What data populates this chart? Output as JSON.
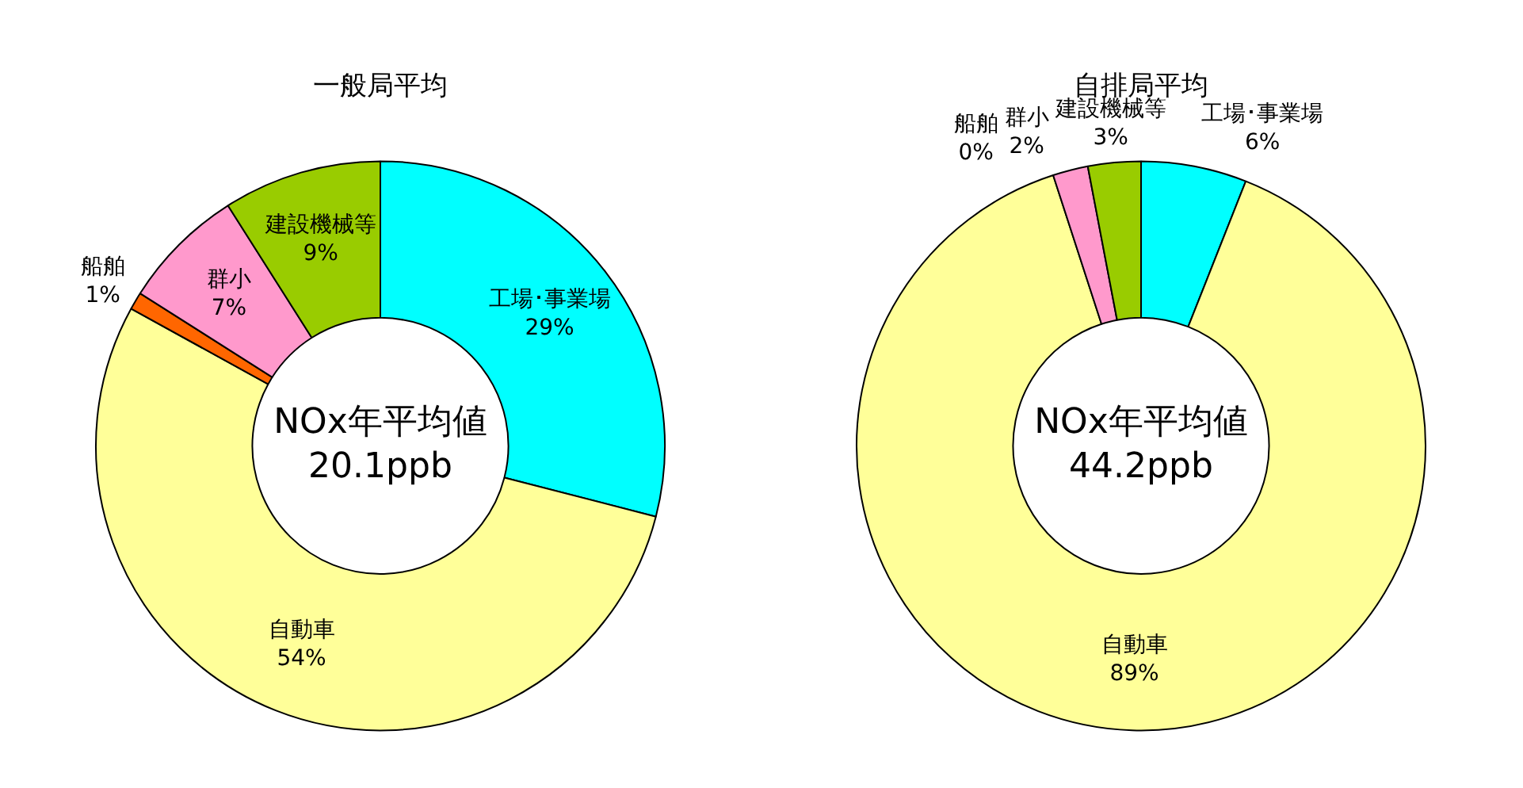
{
  "chart_data": [
    {
      "type": "donut",
      "title": "一般局平均",
      "categories": [
        "工場･事業場",
        "自動車",
        "船舶",
        "群小",
        "建設機械等"
      ],
      "values": [
        29,
        54,
        1,
        7,
        9
      ],
      "value_labels": [
        "29%",
        "54%",
        "1%",
        "7%",
        "9%"
      ],
      "colors": [
        "#00ffff",
        "#ffff99",
        "#ff6600",
        "#ff99cc",
        "#99cc00"
      ],
      "annotations": [
        "NOx年平均値\n20.1ppb"
      ],
      "legend": false
    },
    {
      "type": "donut",
      "title": "自排局平均",
      "categories": [
        "工場･事業場",
        "自動車",
        "船舶",
        "群小",
        "建設機械等"
      ],
      "values": [
        6,
        89,
        0,
        2,
        3
      ],
      "value_labels": [
        "6%",
        "89%",
        "0%",
        "2%",
        "3%"
      ],
      "colors": [
        "#00ffff",
        "#ffff99",
        "#ff6600",
        "#ff99cc",
        "#99cc00"
      ],
      "annotations": [
        "NOx年平均値\n44.2ppb"
      ],
      "legend": false
    }
  ]
}
